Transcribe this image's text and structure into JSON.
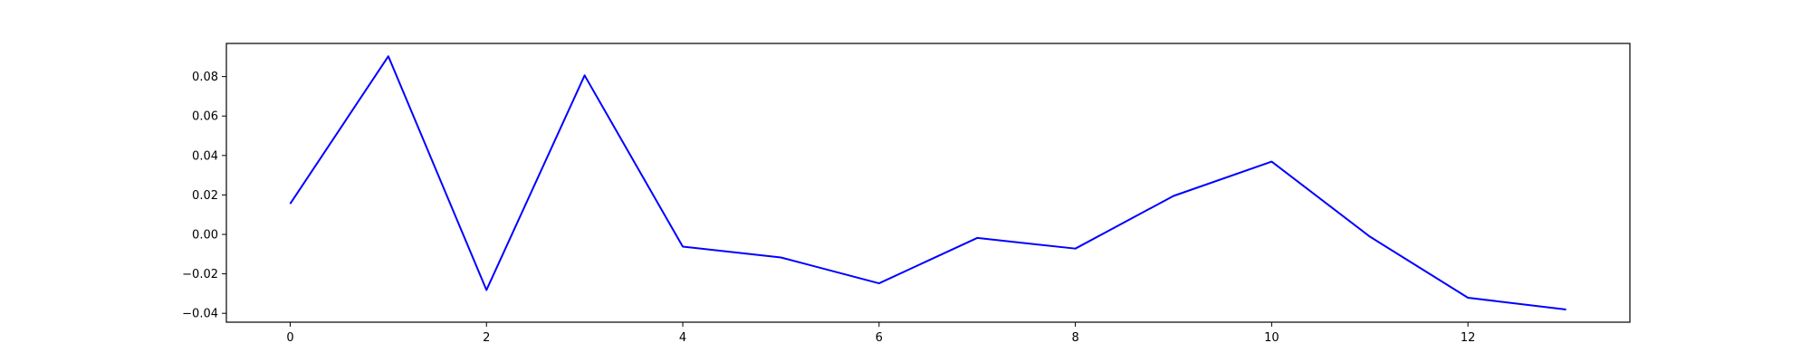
{
  "chart_data": {
    "type": "line",
    "title": "",
    "xlabel": "",
    "ylabel": "",
    "x": [
      0,
      1,
      2,
      3,
      4,
      5,
      6,
      7,
      8,
      9,
      10,
      11,
      12,
      13
    ],
    "series": [
      {
        "values": [
          0.0155,
          0.0903,
          -0.0282,
          0.0806,
          -0.0062,
          -0.0117,
          -0.0248,
          -0.0018,
          -0.0072,
          0.0195,
          0.0369,
          -0.0011,
          -0.0321,
          -0.0381
        ],
        "color": "#0000ff"
      }
    ],
    "xlim": [
      -0.65,
      13.65
    ],
    "ylim": [
      -0.0445,
      0.0968
    ],
    "xticks": [
      0,
      2,
      4,
      6,
      8,
      10,
      12
    ],
    "xtick_labels": [
      "0",
      "2",
      "4",
      "6",
      "8",
      "10",
      "12"
    ],
    "yticks": [
      -0.04,
      -0.02,
      0.0,
      0.02,
      0.04,
      0.06,
      0.08
    ],
    "ytick_labels": [
      "−0.04",
      "−0.02",
      "0.00",
      "0.02",
      "0.04",
      "0.06",
      "0.08"
    ],
    "grid": false,
    "legend": "none"
  }
}
